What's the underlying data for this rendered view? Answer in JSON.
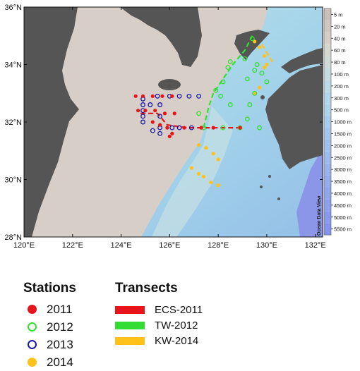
{
  "map": {
    "lon_range": [
      120,
      132.3
    ],
    "lat_range": [
      28,
      36
    ],
    "x_ticks": [
      {
        "lon": 120,
        "label": "120°E"
      },
      {
        "lon": 122,
        "label": "122°E"
      },
      {
        "lon": 124,
        "label": "124°E"
      },
      {
        "lon": 126,
        "label": "126°E"
      },
      {
        "lon": 128,
        "label": "128°E"
      },
      {
        "lon": 130,
        "label": "130°E"
      },
      {
        "lon": 132,
        "label": "132°E"
      }
    ],
    "y_ticks": [
      {
        "lat": 36,
        "label": "36°N"
      },
      {
        "lat": 34,
        "label": "34°N"
      },
      {
        "lat": 32,
        "label": "32°N"
      },
      {
        "lat": 30,
        "label": "30°N"
      },
      {
        "lat": 28,
        "label": "28°N"
      }
    ],
    "watermark": "Ocean Data View",
    "colors": {
      "land": "#555555",
      "shelf": "#d8cec8",
      "slope": "#c0d8e4",
      "deep": "#8fa6e6",
      "s2011": "#e8141c",
      "s2012": "#33dd33",
      "s2013": "#1a1aa8",
      "s2014": "#ffc21a"
    },
    "stations_2011": [
      [
        124.6,
        32.9
      ],
      [
        124.9,
        32.9
      ],
      [
        125.3,
        32.9
      ],
      [
        125.7,
        32.9
      ],
      [
        126.1,
        32.9
      ],
      [
        124.7,
        32.4
      ],
      [
        125.0,
        32.4
      ],
      [
        125.4,
        32.4
      ],
      [
        125.8,
        32.3
      ],
      [
        126.2,
        32.3
      ],
      [
        125.3,
        32.0
      ],
      [
        125.6,
        31.9
      ],
      [
        125.9,
        31.8
      ],
      [
        126.6,
        31.8
      ],
      [
        127.3,
        31.8
      ],
      [
        126.1,
        31.6
      ],
      [
        126.0,
        31.5
      ],
      [
        127.8,
        31.8
      ],
      [
        128.9,
        31.8
      ]
    ],
    "stations_2012": [
      [
        128.5,
        34.1
      ],
      [
        129.4,
        34.9
      ],
      [
        129.1,
        34.2
      ],
      [
        128.4,
        33.9
      ],
      [
        128.2,
        33.4
      ],
      [
        127.9,
        33.1
      ],
      [
        128.1,
        32.9
      ],
      [
        128.5,
        32.6
      ],
      [
        127.2,
        32.3
      ],
      [
        127.4,
        31.8
      ],
      [
        128.2,
        31.8
      ],
      [
        128.9,
        31.8
      ],
      [
        129.2,
        32.1
      ],
      [
        129.3,
        32.6
      ],
      [
        129.5,
        33.0
      ],
      [
        129.2,
        33.5
      ],
      [
        129.5,
        33.8
      ],
      [
        129.8,
        33.7
      ],
      [
        130.0,
        33.4
      ],
      [
        129.6,
        34.0
      ],
      [
        129.7,
        31.8
      ]
    ],
    "stations_2013": [
      [
        124.9,
        32.8
      ],
      [
        124.9,
        32.6
      ],
      [
        124.9,
        32.4
      ],
      [
        124.9,
        32.2
      ],
      [
        124.9,
        32.0
      ],
      [
        125.2,
        32.6
      ],
      [
        125.6,
        32.6
      ],
      [
        125.6,
        32.2
      ],
      [
        125.6,
        31.8
      ],
      [
        125.6,
        31.6
      ],
      [
        125.5,
        32.9
      ],
      [
        126.0,
        32.9
      ],
      [
        126.4,
        32.9
      ],
      [
        126.8,
        32.9
      ],
      [
        127.2,
        32.9
      ],
      [
        126.1,
        31.8
      ],
      [
        126.4,
        31.8
      ],
      [
        126.9,
        31.8
      ],
      [
        125.3,
        31.7
      ]
    ],
    "stations_2014": [
      [
        127.2,
        31.2
      ],
      [
        127.5,
        31.1
      ],
      [
        127.8,
        30.9
      ],
      [
        128.0,
        30.7
      ],
      [
        126.9,
        30.4
      ],
      [
        127.2,
        30.2
      ],
      [
        127.4,
        30.1
      ],
      [
        127.7,
        29.9
      ],
      [
        128.0,
        29.8
      ],
      [
        129.5,
        34.8
      ],
      [
        129.7,
        34.6
      ],
      [
        129.9,
        34.3
      ],
      [
        130.0,
        34.0
      ],
      [
        129.9,
        33.9
      ],
      [
        129.7,
        33.2
      ],
      [
        129.5,
        33.0
      ]
    ],
    "transect_ecs_2011": [
      [
        124.8,
        32.3
      ],
      [
        125.5,
        32.3
      ],
      [
        125.9,
        31.9
      ],
      [
        126.7,
        31.8
      ],
      [
        128.0,
        31.8
      ],
      [
        128.9,
        31.8
      ]
    ],
    "transect_tw_2012": [
      [
        127.4,
        31.8
      ],
      [
        127.6,
        32.5
      ],
      [
        127.8,
        33.0
      ],
      [
        128.2,
        33.5
      ],
      [
        128.6,
        34.0
      ],
      [
        129.1,
        34.5
      ],
      [
        129.4,
        35.0
      ]
    ],
    "transect_kw_2014": [
      [
        129.8,
        34.7
      ],
      [
        130.3,
        34.0
      ]
    ],
    "colorbar": [
      {
        "label": "5 m",
        "color": "#cbbfb9"
      },
      {
        "label": "20 m",
        "color": "#d1c6c0"
      },
      {
        "label": "40 m",
        "color": "#d8cec8"
      },
      {
        "label": "60 m",
        "color": "#d6d6d0"
      },
      {
        "label": "80 m",
        "color": "#cfd9d6"
      },
      {
        "label": "100 m",
        "color": "#c6dadd"
      },
      {
        "label": "200 m",
        "color": "#bcdae6"
      },
      {
        "label": "300 m",
        "color": "#b4d6ea"
      },
      {
        "label": "500 m",
        "color": "#aed4ea"
      },
      {
        "label": "1000 m",
        "color": "#a8cceb"
      },
      {
        "label": "1500 m",
        "color": "#a4c6ec"
      },
      {
        "label": "2000 m",
        "color": "#a0c0ec"
      },
      {
        "label": "2500 m",
        "color": "#9cbaec"
      },
      {
        "label": "3000 m",
        "color": "#98b2ec"
      },
      {
        "label": "3500 m",
        "color": "#94acec"
      },
      {
        "label": "4000 m",
        "color": "#90a6ec"
      },
      {
        "label": "4500 m",
        "color": "#8ca0ec"
      },
      {
        "label": "5000 m",
        "color": "#889aec"
      },
      {
        "label": "5500 m",
        "color": "#8494ec"
      }
    ]
  },
  "legend": {
    "stations_title": "Stations",
    "stations": [
      {
        "label": "2011",
        "color": "#e8141c",
        "filled": true
      },
      {
        "label": "2012",
        "color": "#33dd33",
        "filled": false
      },
      {
        "label": "2013",
        "color": "#1a1aa8",
        "filled": false
      },
      {
        "label": "2014",
        "color": "#ffc21a",
        "filled": true
      }
    ],
    "transects_title": "Transects",
    "transects": [
      {
        "label": "ECS-2011",
        "color": "#e8141c"
      },
      {
        "label": "TW-2012",
        "color": "#33dd33"
      },
      {
        "label": "KW-2014",
        "color": "#ffc21a"
      }
    ]
  }
}
